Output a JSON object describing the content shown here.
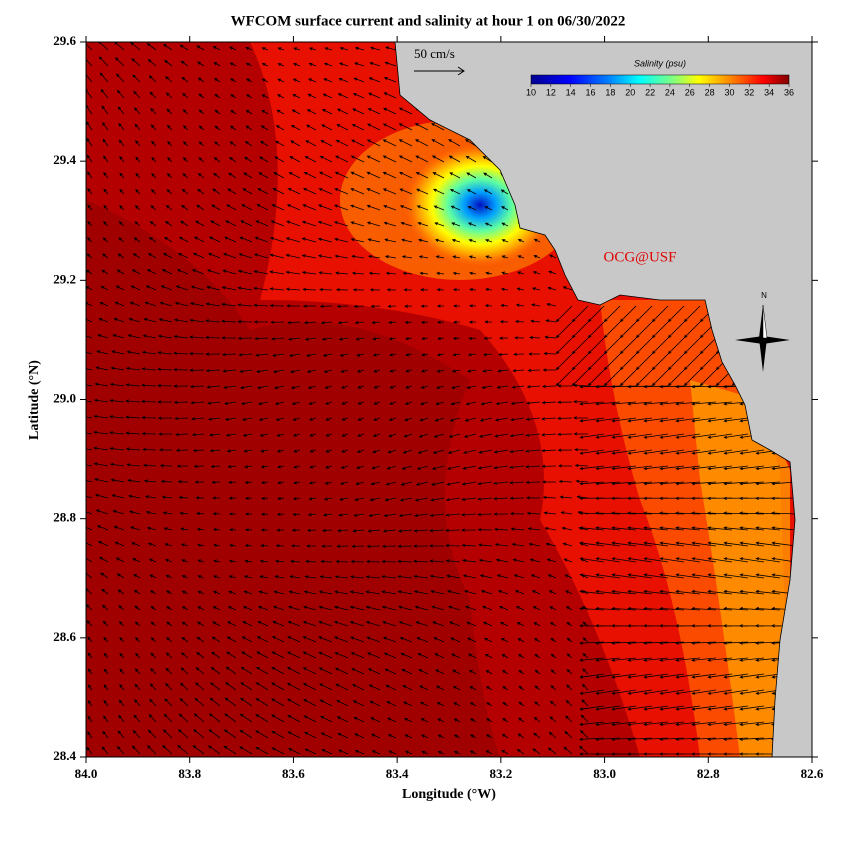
{
  "title": "WFCOM surface current and salinity at hour 1 on 06/30/2022",
  "x_axis": {
    "label": "Longitude (°W)",
    "lim": [
      84.0,
      82.6
    ],
    "ticks": [
      {
        "value": 84.0,
        "label": "84.0"
      },
      {
        "value": 83.8,
        "label": "83.8"
      },
      {
        "value": 83.6,
        "label": "83.6"
      },
      {
        "value": 83.4,
        "label": "83.4"
      },
      {
        "value": 83.2,
        "label": "83.2"
      },
      {
        "value": 83.0,
        "label": "83.0"
      },
      {
        "value": 82.8,
        "label": "82.8"
      },
      {
        "value": 82.6,
        "label": "82.6"
      }
    ]
  },
  "y_axis": {
    "label": "Latitude (°N)",
    "lim": [
      28.4,
      29.6
    ],
    "ticks": [
      {
        "value": 28.4,
        "label": "28.4"
      },
      {
        "value": 28.6,
        "label": "28.6"
      },
      {
        "value": 28.8,
        "label": "28.8"
      },
      {
        "value": 29.0,
        "label": "29.0"
      },
      {
        "value": 29.2,
        "label": "29.2"
      },
      {
        "value": 29.4,
        "label": "29.4"
      },
      {
        "value": 29.6,
        "label": "29.6"
      }
    ]
  },
  "colorbar": {
    "title": "Salinity (psu)",
    "lim": [
      10,
      36
    ],
    "ticks": [
      10,
      12,
      14,
      16,
      18,
      20,
      22,
      24,
      26,
      28,
      30,
      32,
      34,
      36
    ]
  },
  "scale_arrow_label": "50 cm/s",
  "credit": "OCG@USF",
  "compass": "N"
}
